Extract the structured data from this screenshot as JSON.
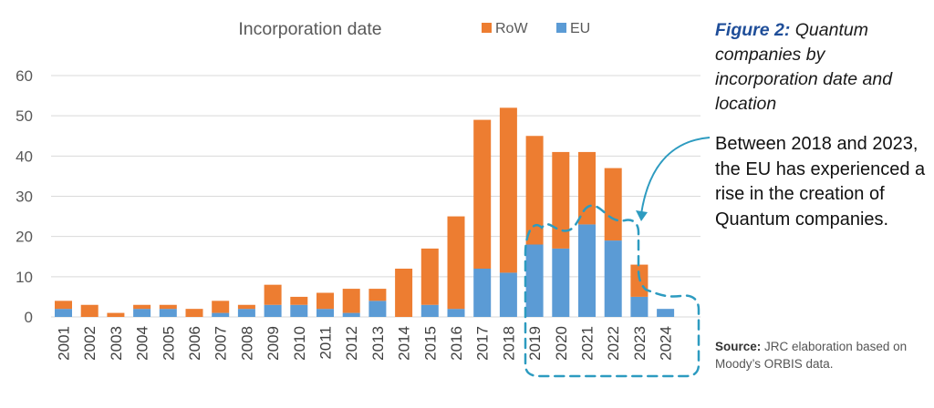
{
  "chart_data": {
    "type": "bar",
    "stacked": true,
    "title": "Incorporation date",
    "categories": [
      "2001",
      "2002",
      "2003",
      "2004",
      "2005",
      "2006",
      "2007",
      "2008",
      "2009",
      "2010",
      "2011",
      "2012",
      "2013",
      "2014",
      "2015",
      "2016",
      "2017",
      "2018",
      "2019",
      "2020",
      "2021",
      "2022",
      "2023",
      "2024"
    ],
    "series": [
      {
        "name": "EU",
        "color": "#5b9bd5",
        "values": [
          2,
          0,
          0,
          2,
          2,
          0,
          1,
          2,
          3,
          3,
          2,
          1,
          4,
          0,
          3,
          2,
          12,
          11,
          18,
          17,
          23,
          19,
          5,
          2
        ]
      },
      {
        "name": "RoW",
        "color": "#ed7d31",
        "values": [
          2,
          3,
          1,
          1,
          1,
          2,
          3,
          1,
          5,
          2,
          4,
          6,
          3,
          12,
          14,
          23,
          37,
          41,
          27,
          24,
          18,
          18,
          8,
          0
        ]
      }
    ],
    "legend_order": [
      "RoW",
      "EU"
    ],
    "legend_position": "top",
    "yticks": [
      "0",
      "10",
      "20",
      "30",
      "40",
      "50",
      "60"
    ],
    "ylim": [
      0,
      60
    ],
    "grid": "horizontal",
    "xlabel": "",
    "ylabel": "",
    "highlight": {
      "from": "2019",
      "to": "2024",
      "style": "dashed",
      "color": "#2d9bc0"
    }
  },
  "caption": {
    "label": "Figure 2:",
    "text": " Quantum companies by incorporation date and location"
  },
  "callout": "Between 2018 and 2023, the EU has experienced a rise in the creation of Quantum companies.",
  "source": {
    "label": "Source:",
    "text": " JRC elaboration based on Moody’s ORBIS data."
  }
}
